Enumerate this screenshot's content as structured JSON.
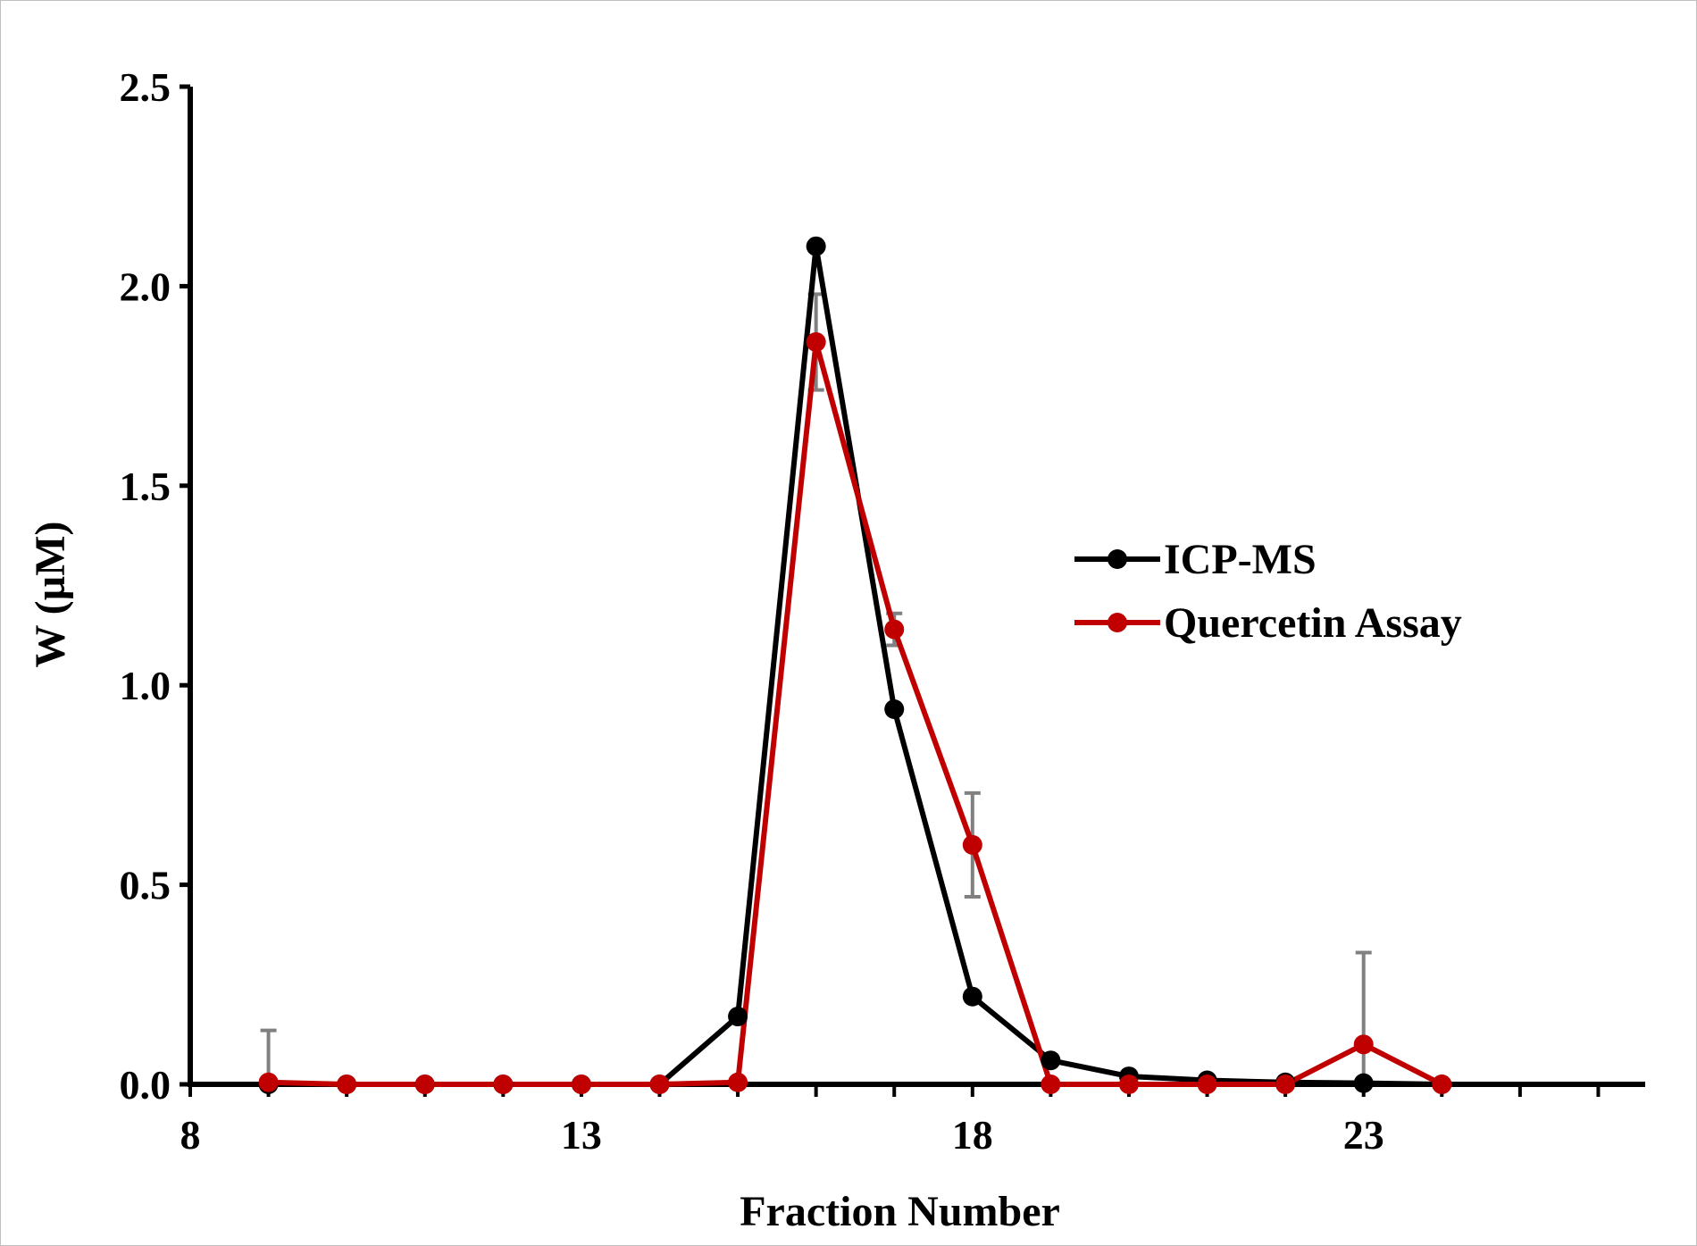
{
  "chart_data": {
    "type": "line",
    "title": "",
    "xlabel": "Fraction Number",
    "ylabel": "W (µM)",
    "xlim": [
      8,
      26.6
    ],
    "ylim": [
      0,
      2.5
    ],
    "x_ticks": [
      8,
      13,
      18,
      23
    ],
    "y_ticks": [
      0.0,
      0.5,
      1.0,
      1.5,
      2.0,
      2.5
    ],
    "x_tick_labels": [
      "8",
      "13",
      "18",
      "23"
    ],
    "y_tick_labels": [
      "0.0",
      "0.5",
      "1.0",
      "1.5",
      "2.0",
      "2.5"
    ],
    "grid": false,
    "legend_position": "right",
    "series": [
      {
        "name": "ICP-MS",
        "color": "#000000",
        "x": [
          9,
          10,
          11,
          12,
          13,
          14,
          15,
          16,
          17,
          18,
          19,
          20,
          21,
          22,
          23,
          24
        ],
        "y": [
          0.0,
          0.0,
          0.0,
          0.0,
          0.0,
          0.0,
          0.17,
          2.1,
          0.94,
          0.22,
          0.06,
          0.02,
          0.01,
          0.005,
          0.003,
          0.0
        ]
      },
      {
        "name": "Quercetin Assay",
        "color": "#c00000",
        "x": [
          9,
          10,
          11,
          12,
          13,
          14,
          15,
          16,
          17,
          18,
          19,
          20,
          21,
          22,
          23,
          24
        ],
        "y": [
          0.005,
          0.0,
          0.0,
          0.0,
          0.0,
          0.0,
          0.005,
          1.86,
          1.14,
          0.6,
          0.0,
          0.0,
          0.0,
          0.0,
          0.1,
          0.0
        ],
        "error": [
          0.13,
          0,
          0,
          0,
          0,
          0,
          0,
          0.12,
          0.04,
          0.13,
          0,
          0,
          0,
          0,
          0.23,
          0
        ]
      }
    ]
  }
}
